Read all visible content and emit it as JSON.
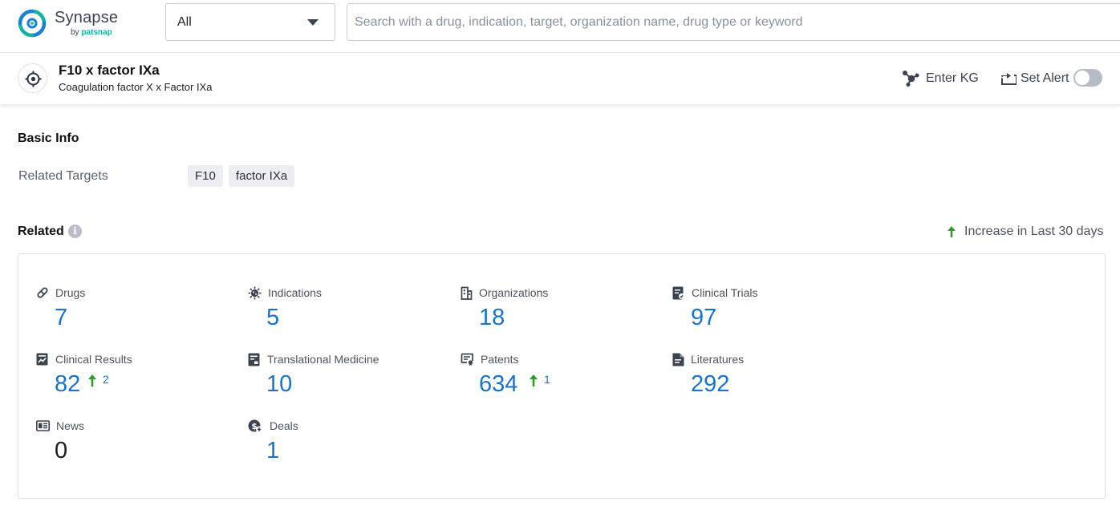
{
  "app": {
    "name": "Synapse",
    "byline_prefix": "by",
    "byline_brand": "patsnap"
  },
  "search": {
    "scope_value": "All",
    "placeholder": "Search with a drug, indication, target, organization name, drug type or keyword"
  },
  "target": {
    "title": "F10 x factor IXa",
    "subtitle": "Coagulation factor X x Factor IXa",
    "actions": {
      "enter_kg": "Enter KG",
      "set_alert": "Set Alert",
      "alert_enabled": false
    }
  },
  "basic_info": {
    "title": "Basic Info",
    "related_targets_label": "Related Targets",
    "related_targets": [
      "F10",
      "factor IXa"
    ]
  },
  "related": {
    "title": "Related",
    "legend": "Increase in Last 30 days",
    "colors": {
      "accent": "#1a73c8",
      "increase": "#2e9a2e"
    },
    "items": [
      {
        "label": "Drugs",
        "icon": "pill-icon",
        "value": "7"
      },
      {
        "label": "Indications",
        "icon": "virus-icon",
        "value": "5"
      },
      {
        "label": "Organizations",
        "icon": "building-icon",
        "value": "18"
      },
      {
        "label": "Clinical Trials",
        "icon": "clipboard-icon",
        "value": "97"
      },
      {
        "label": "Clinical Results",
        "icon": "chart-report-icon",
        "value": "82",
        "increase": "2"
      },
      {
        "label": "Translational Medicine",
        "icon": "document-list-icon",
        "value": "10"
      },
      {
        "label": "Patents",
        "icon": "patent-icon",
        "value": "634",
        "increase": "1"
      },
      {
        "label": "Literatures",
        "icon": "literature-icon",
        "value": "292"
      },
      {
        "label": "News",
        "icon": "newspaper-icon",
        "value": "0"
      },
      {
        "label": "Deals",
        "icon": "deal-icon",
        "value": "1"
      }
    ]
  }
}
